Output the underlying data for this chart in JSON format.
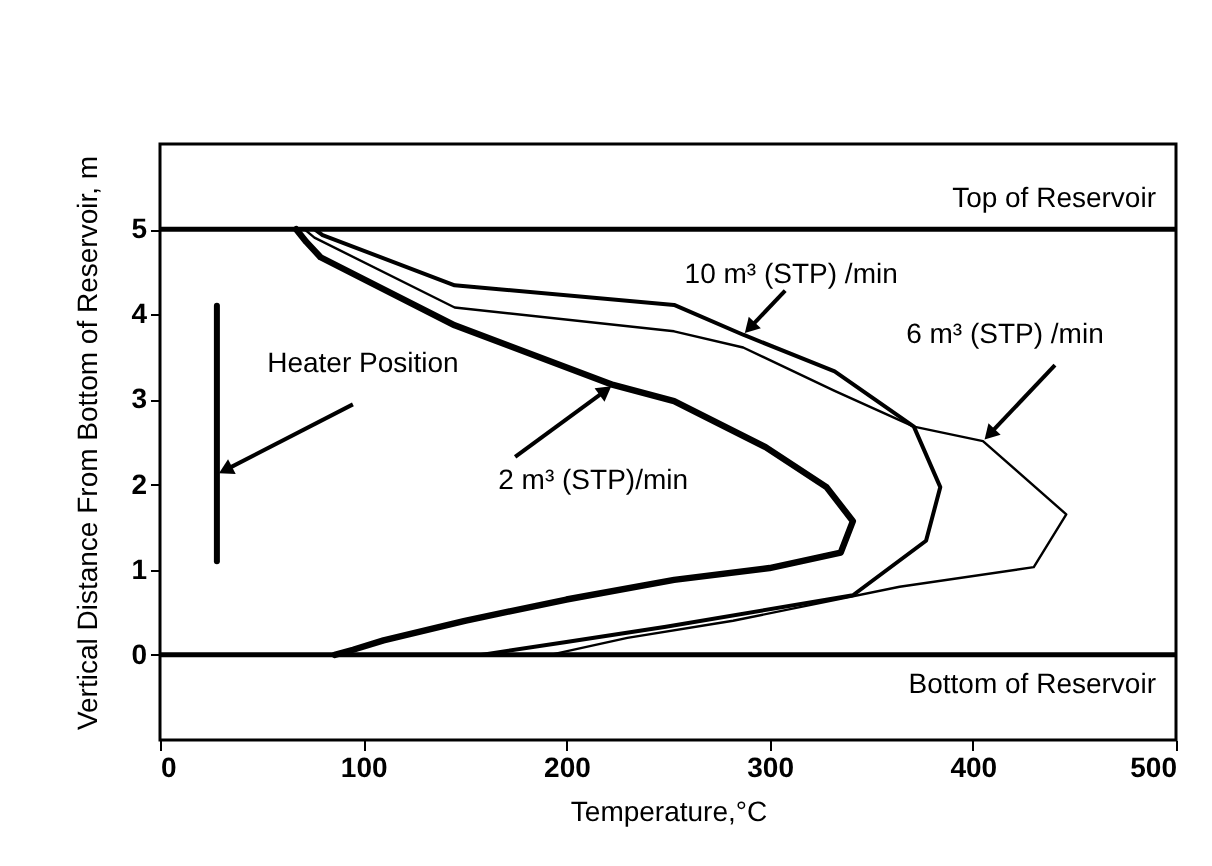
{
  "chart_data": {
    "type": "line",
    "xlabel": "Temperature,°C",
    "ylabel": "Vertical Distance From Bottom of Reservoir, m",
    "xlim": [
      0,
      500
    ],
    "xticks": [
      0,
      100,
      200,
      300,
      400,
      500
    ],
    "ylim": [
      -1,
      6
    ],
    "yticks": [
      0,
      1,
      2,
      3,
      4,
      5
    ],
    "grid": false,
    "marker": "none",
    "line_style": "solid",
    "series": [
      {
        "color": "#000000",
        "x": [
          67,
          72,
          79,
          145,
          223,
          253,
          298,
          328,
          341,
          335,
          300,
          253,
          200,
          150,
          110,
          95,
          86
        ],
        "values": [
          5.0,
          4.85,
          4.67,
          3.87,
          3.17,
          2.98,
          2.44,
          1.97,
          1.57,
          1.2,
          1.02,
          0.88,
          0.65,
          0.4,
          0.17,
          0.06,
          0.0
        ]
      },
      {
        "color": "#000000",
        "x": [
          76,
          80,
          145,
          253,
          287,
          332,
          371,
          384,
          377,
          341,
          249,
          200,
          158
        ],
        "values": [
          5.0,
          4.93,
          4.34,
          4.11,
          3.76,
          3.33,
          2.68,
          1.97,
          1.34,
          0.7,
          0.33,
          0.15,
          0.0
        ]
      },
      {
        "color": "#000000",
        "x": [
          71,
          76,
          145,
          253,
          287,
          332,
          371,
          405,
          446,
          430,
          364,
          282,
          230,
          192
        ],
        "values": [
          5.0,
          4.9,
          4.08,
          3.8,
          3.61,
          3.1,
          2.68,
          2.51,
          1.65,
          1.03,
          0.8,
          0.4,
          0.2,
          0.0
        ]
      },
      {
        "color": "#000000",
        "x": [
          28,
          28
        ],
        "values": [
          1.1,
          4.1
        ]
      }
    ],
    "ref_lines": [
      {
        "axis": "y",
        "value": 5,
        "label": "Top of Reservoir",
        "color": "#000000"
      },
      {
        "axis": "y",
        "value": 0,
        "label": "Bottom of Reservoir",
        "color": "#000000"
      }
    ],
    "annotations": [
      {
        "text": "Heater Position",
        "x": 28,
        "y": 2.12
      },
      {
        "text": "2 m³ (STP)/min",
        "x": 223,
        "y": 3.17
      },
      {
        "text": "10 m³ (STP) /min",
        "x": 287,
        "y": 3.76
      },
      {
        "text": "6 m³ (STP) /min",
        "x": 405,
        "y": 2.51
      }
    ]
  }
}
